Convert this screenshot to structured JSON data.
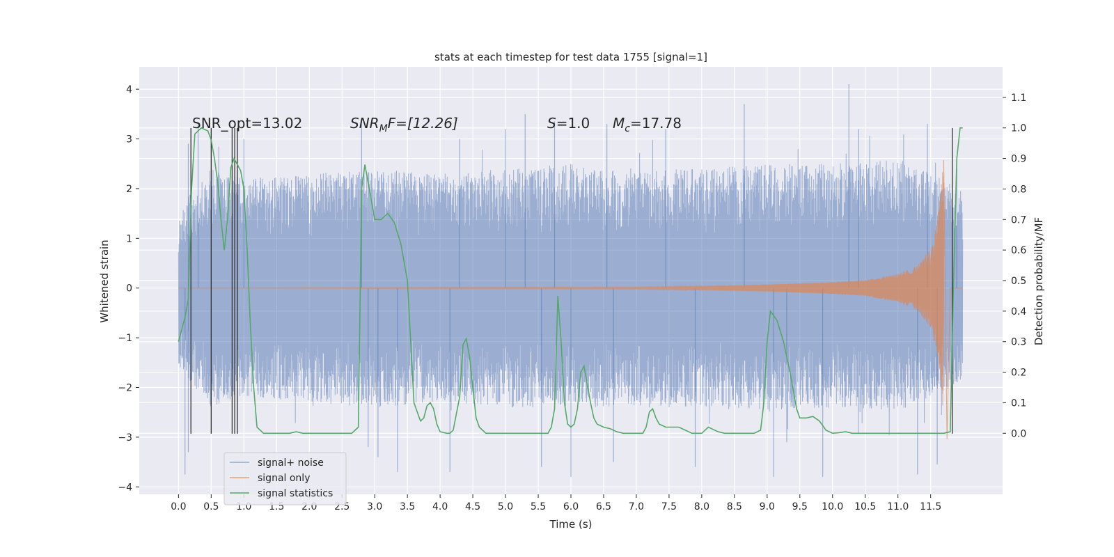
{
  "chart_data": {
    "type": "line",
    "title": "stats at each timestep for test data 1755 [signal=1]",
    "xlabel": "Time (s)",
    "ylabel": "Whitened strain",
    "y2label": "Detection probability/MF",
    "xlim": [
      -0.6,
      12.6
    ],
    "ylim": [
      -4.15,
      4.45
    ],
    "y2lim": [
      -0.2,
      1.2
    ],
    "x_ticks": [
      0.0,
      0.5,
      1.0,
      1.5,
      2.0,
      2.5,
      3.0,
      3.5,
      4.0,
      4.5,
      5.0,
      5.5,
      6.0,
      6.5,
      7.0,
      7.5,
      8.0,
      8.5,
      9.0,
      9.5,
      10.0,
      10.5,
      11.0,
      11.5
    ],
    "x_tick_labels": [
      "0.0",
      "0.5",
      "1.0",
      "1.5",
      "2.0",
      "2.5",
      "3.0",
      "3.5",
      "4.0",
      "4.5",
      "5.0",
      "5.5",
      "6.0",
      "6.5",
      "7.0",
      "7.5",
      "8.0",
      "8.5",
      "9.0",
      "9.5",
      "10.0",
      "10.5",
      "11.0",
      "11.5"
    ],
    "y_ticks": [
      -4,
      -3,
      -2,
      -1,
      0,
      1,
      2,
      3,
      4
    ],
    "y_tick_labels": [
      "−4",
      "−3",
      "−2",
      "−1",
      "0",
      "1",
      "2",
      "3",
      "4"
    ],
    "y2_ticks": [
      0.0,
      0.1,
      0.2,
      0.3,
      0.4,
      0.5,
      0.6,
      0.7,
      0.8,
      0.9,
      1.0,
      1.1
    ],
    "y2_tick_labels": [
      "0.0",
      "0.1",
      "0.2",
      "0.3",
      "0.4",
      "0.5",
      "0.6",
      "0.7",
      "0.8",
      "0.9",
      "1.0",
      "1.1"
    ],
    "grid": true,
    "legend_position": "lower-left",
    "annotations": {
      "snr_opt": "SNR_opt=13.02",
      "snr_mf_label": "SNR",
      "snr_mf_sub": "M",
      "snr_mf_tail": "F=[12.26]",
      "s_label": "S",
      "s_value": "=1.0",
      "mc_label": "M",
      "mc_sub": "c",
      "mc_value": "=17.78"
    },
    "series": [
      {
        "name": "signal+ noise",
        "color": "#4c72b0",
        "style": "noise band",
        "envelope_upper": [
          [
            0.0,
            1.6
          ],
          [
            0.5,
            2.4
          ],
          [
            1.0,
            2.2
          ],
          [
            2.0,
            2.3
          ],
          [
            3.0,
            2.4
          ],
          [
            4.0,
            2.3
          ],
          [
            5.0,
            2.4
          ],
          [
            6.0,
            2.5
          ],
          [
            7.0,
            2.4
          ],
          [
            8.0,
            2.4
          ],
          [
            9.0,
            2.5
          ],
          [
            10.0,
            2.5
          ],
          [
            11.0,
            2.6
          ],
          [
            11.99,
            2.0
          ]
        ],
        "envelope_lower": [
          [
            0.0,
            -1.6
          ],
          [
            0.5,
            -2.4
          ],
          [
            1.0,
            -2.2
          ],
          [
            2.0,
            -2.3
          ],
          [
            3.0,
            -2.4
          ],
          [
            4.0,
            -2.3
          ],
          [
            5.0,
            -2.4
          ],
          [
            6.0,
            -2.4
          ],
          [
            7.0,
            -2.4
          ],
          [
            8.0,
            -2.4
          ],
          [
            9.0,
            -2.5
          ],
          [
            10.0,
            -2.4
          ],
          [
            11.0,
            -2.5
          ],
          [
            11.99,
            -1.9
          ]
        ],
        "peaks": [
          [
            0.1,
            -3.75
          ],
          [
            0.15,
            2.9
          ],
          [
            0.3,
            3.3
          ],
          [
            0.15,
            -3.3
          ],
          [
            1.0,
            3.0
          ],
          [
            2.8,
            3.3
          ],
          [
            2.9,
            -3.2
          ],
          [
            3.05,
            -3.4
          ],
          [
            3.35,
            -3.7
          ],
          [
            4.15,
            -3.7
          ],
          [
            4.3,
            3.0
          ],
          [
            5.0,
            3.2
          ],
          [
            5.3,
            3.5
          ],
          [
            5.55,
            -3.6
          ],
          [
            5.75,
            3.35
          ],
          [
            6.0,
            -3.8
          ],
          [
            6.55,
            3.3
          ],
          [
            6.65,
            -3.5
          ],
          [
            7.45,
            3.2
          ],
          [
            7.9,
            -3.6
          ],
          [
            8.65,
            3.7
          ],
          [
            9.1,
            -3.8
          ],
          [
            9.3,
            -3.1
          ],
          [
            9.85,
            -3.8
          ],
          [
            10.25,
            4.1
          ],
          [
            10.4,
            3.2
          ],
          [
            11.3,
            -3.75
          ],
          [
            11.45,
            3.3
          ],
          [
            11.6,
            -3.55
          ],
          [
            11.9,
            2.4
          ]
        ]
      },
      {
        "name": "signal only",
        "color": "#dd8452",
        "style": "chirp",
        "start_time": 0.0,
        "merger_time": 11.8,
        "amplitude_envelope": [
          [
            0.0,
            0.005
          ],
          [
            7.0,
            0.02
          ],
          [
            8.0,
            0.04
          ],
          [
            9.0,
            0.07
          ],
          [
            10.0,
            0.12
          ],
          [
            10.5,
            0.16
          ],
          [
            11.0,
            0.28
          ],
          [
            11.3,
            0.45
          ],
          [
            11.5,
            0.8
          ],
          [
            11.6,
            1.3
          ],
          [
            11.65,
            1.9
          ],
          [
            11.7,
            2.6
          ],
          [
            11.75,
            -3.05
          ],
          [
            11.8,
            0.0
          ],
          [
            11.99,
            0.0
          ]
        ]
      },
      {
        "name": "signal statistics",
        "color": "#55a868",
        "style": "line",
        "axis": "right",
        "points": [
          [
            0.0,
            0.3
          ],
          [
            0.05,
            0.34
          ],
          [
            0.1,
            0.38
          ],
          [
            0.15,
            0.44
          ],
          [
            0.2,
            0.8
          ],
          [
            0.25,
            0.98
          ],
          [
            0.35,
            1.0
          ],
          [
            0.45,
            0.99
          ],
          [
            0.5,
            0.96
          ],
          [
            0.55,
            0.9
          ],
          [
            0.6,
            0.82
          ],
          [
            0.65,
            0.7
          ],
          [
            0.7,
            0.6
          ],
          [
            0.75,
            0.7
          ],
          [
            0.8,
            0.87
          ],
          [
            0.85,
            0.9
          ],
          [
            0.9,
            0.88
          ],
          [
            0.95,
            0.86
          ],
          [
            1.0,
            0.8
          ],
          [
            1.05,
            0.6
          ],
          [
            1.1,
            0.35
          ],
          [
            1.15,
            0.15
          ],
          [
            1.2,
            0.02
          ],
          [
            1.3,
            0.0
          ],
          [
            1.7,
            0.0
          ],
          [
            1.8,
            0.005
          ],
          [
            1.9,
            0.0
          ],
          [
            2.4,
            0.0
          ],
          [
            2.65,
            0.0
          ],
          [
            2.75,
            0.02
          ],
          [
            2.8,
            0.8
          ],
          [
            2.85,
            0.88
          ],
          [
            2.9,
            0.82
          ],
          [
            3.0,
            0.7
          ],
          [
            3.1,
            0.7
          ],
          [
            3.2,
            0.72
          ],
          [
            3.3,
            0.69
          ],
          [
            3.4,
            0.62
          ],
          [
            3.5,
            0.5
          ],
          [
            3.55,
            0.3
          ],
          [
            3.6,
            0.1
          ],
          [
            3.65,
            0.07
          ],
          [
            3.7,
            0.04
          ],
          [
            3.75,
            0.05
          ],
          [
            3.8,
            0.09
          ],
          [
            3.85,
            0.1
          ],
          [
            3.9,
            0.08
          ],
          [
            3.95,
            0.03
          ],
          [
            4.0,
            0.005
          ],
          [
            4.1,
            0.0
          ],
          [
            4.15,
            0.0
          ],
          [
            4.2,
            0.01
          ],
          [
            4.3,
            0.12
          ],
          [
            4.35,
            0.29
          ],
          [
            4.4,
            0.31
          ],
          [
            4.45,
            0.25
          ],
          [
            4.5,
            0.15
          ],
          [
            4.55,
            0.05
          ],
          [
            4.6,
            0.02
          ],
          [
            4.7,
            0.0
          ],
          [
            5.0,
            0.0
          ],
          [
            5.3,
            0.0
          ],
          [
            5.65,
            0.0
          ],
          [
            5.7,
            0.02
          ],
          [
            5.75,
            0.08
          ],
          [
            5.8,
            0.45
          ],
          [
            5.85,
            0.3
          ],
          [
            5.9,
            0.1
          ],
          [
            5.95,
            0.03
          ],
          [
            6.0,
            0.02
          ],
          [
            6.05,
            0.03
          ],
          [
            6.1,
            0.08
          ],
          [
            6.15,
            0.2
          ],
          [
            6.2,
            0.22
          ],
          [
            6.3,
            0.1
          ],
          [
            6.35,
            0.05
          ],
          [
            6.4,
            0.03
          ],
          [
            6.5,
            0.02
          ],
          [
            6.6,
            0.015
          ],
          [
            6.7,
            0.005
          ],
          [
            6.8,
            0.0
          ],
          [
            7.1,
            0.0
          ],
          [
            7.15,
            0.02
          ],
          [
            7.2,
            0.07
          ],
          [
            7.25,
            0.08
          ],
          [
            7.3,
            0.05
          ],
          [
            7.35,
            0.03
          ],
          [
            7.45,
            0.02
          ],
          [
            7.55,
            0.02
          ],
          [
            7.65,
            0.02
          ],
          [
            7.75,
            0.01
          ],
          [
            7.85,
            0.0
          ],
          [
            8.0,
            0.0
          ],
          [
            8.05,
            0.01
          ],
          [
            8.1,
            0.02
          ],
          [
            8.15,
            0.015
          ],
          [
            8.25,
            0.005
          ],
          [
            8.35,
            0.0
          ],
          [
            8.8,
            0.0
          ],
          [
            8.9,
            0.01
          ],
          [
            8.95,
            0.1
          ],
          [
            9.0,
            0.3
          ],
          [
            9.05,
            0.4
          ],
          [
            9.15,
            0.37
          ],
          [
            9.25,
            0.3
          ],
          [
            9.35,
            0.2
          ],
          [
            9.45,
            0.08
          ],
          [
            9.5,
            0.05
          ],
          [
            9.6,
            0.05
          ],
          [
            9.7,
            0.055
          ],
          [
            9.8,
            0.04
          ],
          [
            9.9,
            0.01
          ],
          [
            10.0,
            0.0
          ],
          [
            10.1,
            0.002
          ],
          [
            10.2,
            0.005
          ],
          [
            10.3,
            0.0
          ],
          [
            11.0,
            0.0
          ],
          [
            11.7,
            0.0
          ],
          [
            11.8,
            0.005
          ],
          [
            11.85,
            0.5
          ],
          [
            11.9,
            0.9
          ],
          [
            11.95,
            1.0
          ],
          [
            11.99,
            1.0
          ]
        ]
      },
      {
        "name": "",
        "color": "#303030",
        "style": "vertical markers",
        "x": [
          0.19,
          0.5,
          0.82,
          0.86,
          0.9,
          11.83
        ],
        "ymin": -2.93,
        "ymax": 3.22
      }
    ]
  },
  "legend": {
    "items": [
      {
        "label": "signal+ noise",
        "color": "#4c72b0"
      },
      {
        "label": "signal only",
        "color": "#dd8452"
      },
      {
        "label": "signal statistics",
        "color": "#55a868"
      }
    ]
  }
}
